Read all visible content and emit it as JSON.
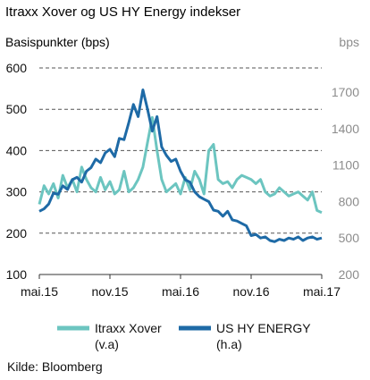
{
  "chart_data": {
    "type": "line",
    "title": "Itraxx Xover og US HY Energy indekser",
    "ylabel_left": "Basispunkter (bps)",
    "ylabel_right": "bps",
    "x_ticks": [
      "mai.15",
      "nov.15",
      "mai.16",
      "nov.16",
      "mai.17"
    ],
    "y_left": {
      "ticks": [
        100,
        200,
        300,
        400,
        500,
        600
      ],
      "range": [
        100,
        600
      ]
    },
    "y_right": {
      "ticks": [
        200,
        500,
        800,
        1100,
        1400,
        1700
      ],
      "range": [
        200,
        1900
      ]
    },
    "grid": "horizontal dashed",
    "legend_position": "bottom",
    "series": [
      {
        "name": "Itraxx Xover",
        "axis_note": "(v.a)",
        "axis": "left",
        "color": "#6cc5c0",
        "x": [
          0,
          0.4,
          0.8,
          1.2,
          1.6,
          2,
          2.4,
          2.8,
          3.2,
          3.6,
          4,
          4.4,
          4.8,
          5.2,
          5.6,
          6,
          6.4,
          6.8,
          7.2,
          7.6,
          8,
          8.4,
          8.8,
          9.2,
          9.6,
          10,
          10.4,
          10.8,
          11.2,
          11.6,
          12,
          12.4,
          12.8,
          13.2,
          13.6,
          14,
          14.4,
          14.8,
          15.2,
          15.6,
          16,
          16.4,
          16.8,
          17.2,
          17.6,
          18,
          18.4,
          18.8,
          19.2,
          19.6,
          20,
          20.4,
          20.8,
          21.2,
          21.6,
          22,
          22.4,
          22.8,
          23.2,
          23.6,
          24
        ],
        "values": [
          270,
          315,
          295,
          320,
          285,
          340,
          310,
          330,
          300,
          360,
          330,
          310,
          300,
          335,
          305,
          325,
          295,
          305,
          350,
          300,
          310,
          330,
          360,
          420,
          480,
          400,
          330,
          300,
          310,
          320,
          295,
          335,
          305,
          350,
          330,
          295,
          400,
          415,
          330,
          320,
          325,
          310,
          330,
          340,
          335,
          330,
          320,
          330,
          300,
          290,
          295,
          310,
          300,
          290,
          295,
          300,
          290,
          280,
          300,
          255,
          250
        ]
      },
      {
        "name": "US HY ENERGY",
        "axis_note": "(h.a)",
        "axis": "right",
        "color": "#1e6aa6",
        "x": [
          0,
          0.4,
          0.8,
          1.2,
          1.6,
          2,
          2.4,
          2.8,
          3.2,
          3.6,
          4,
          4.4,
          4.8,
          5.2,
          5.6,
          6,
          6.4,
          6.8,
          7.2,
          7.6,
          8,
          8.4,
          8.8,
          9.2,
          9.6,
          10,
          10.4,
          10.8,
          11.2,
          11.6,
          12,
          12.4,
          12.8,
          13.2,
          13.6,
          14,
          14.4,
          14.8,
          15.2,
          15.6,
          16,
          16.4,
          16.8,
          17.2,
          17.6,
          18,
          18.4,
          18.8,
          19.2,
          19.6,
          20,
          20.4,
          20.8,
          21.2,
          21.6,
          22,
          22.4,
          22.8,
          23.2,
          23.6,
          24
        ],
        "values": [
          720,
          740,
          780,
          870,
          860,
          930,
          900,
          980,
          1000,
          960,
          1050,
          1080,
          1150,
          1120,
          1200,
          1230,
          1170,
          1320,
          1310,
          1450,
          1600,
          1500,
          1720,
          1560,
          1380,
          1500,
          1250,
          1180,
          1130,
          1150,
          1050,
          980,
          960,
          880,
          840,
          820,
          800,
          730,
          720,
          680,
          720,
          650,
          640,
          620,
          600,
          520,
          530,
          500,
          510,
          480,
          470,
          490,
          480,
          500,
          490,
          510,
          480,
          500,
          510,
          490,
          500
        ]
      }
    ],
    "source": "Kilde: Bloomberg"
  }
}
